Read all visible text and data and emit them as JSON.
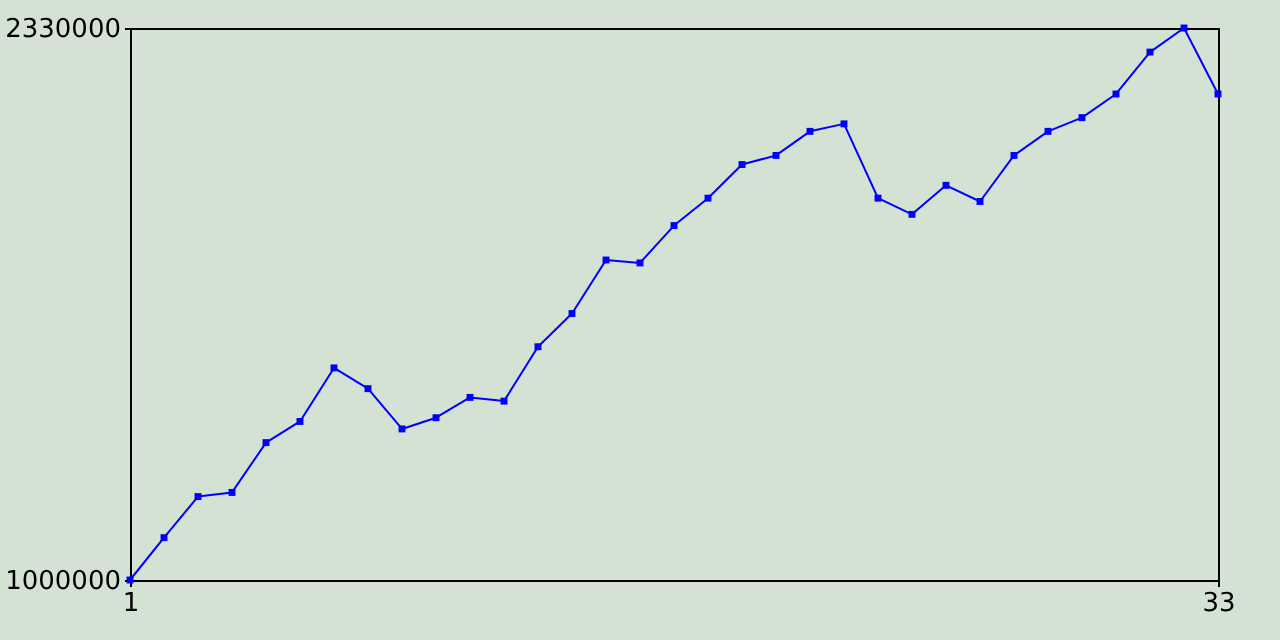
{
  "chart_data": {
    "type": "line",
    "x": [
      1,
      2,
      3,
      4,
      5,
      6,
      7,
      8,
      9,
      10,
      11,
      12,
      13,
      14,
      15,
      16,
      17,
      18,
      19,
      20,
      21,
      22,
      23,
      24,
      25,
      26,
      27,
      28,
      29,
      30,
      31,
      32,
      33
    ],
    "series": [
      {
        "color": "#0000ff",
        "values": [
          1000000,
          1102000,
          1201000,
          1211000,
          1331000,
          1382000,
          1511000,
          1461000,
          1364000,
          1391000,
          1440000,
          1431000,
          1562000,
          1642000,
          1771000,
          1764000,
          1854000,
          1920000,
          2001000,
          2023000,
          2081000,
          2099000,
          1920000,
          1881000,
          1951000,
          1912000,
          2023000,
          2081000,
          2114000,
          2171000,
          2272000,
          2330000,
          2171000
        ]
      }
    ],
    "xlim": [
      1,
      33
    ],
    "xticks": [
      1,
      33
    ],
    "ylim": [
      1000000,
      2330000
    ],
    "yticks": [
      1000000,
      2330000
    ],
    "grid": false,
    "marker": "square",
    "line_style": "solid"
  }
}
